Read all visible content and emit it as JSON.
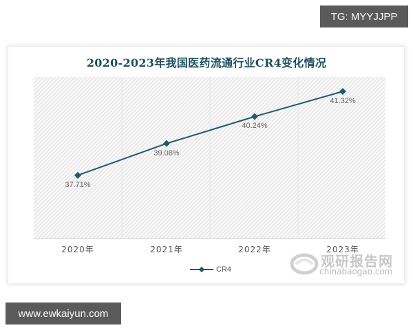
{
  "overlay": {
    "tg_badge": "TG: MYYJJPP",
    "site_badge": "www.ewkaiyun.com"
  },
  "watermark": {
    "brand_cn": "观研报告网",
    "brand_en": "chinabaogao.com"
  },
  "colors": {
    "line": "#1f5a6e",
    "marker": "#1f5a6e",
    "title": "#1f4e5e",
    "plot_hatch": "#d9d9d9"
  },
  "chart_data": {
    "type": "line",
    "title": "2020-2023年我国医药流通行业CR4变化情况",
    "categories": [
      "2020年",
      "2021年",
      "2022年",
      "2023年"
    ],
    "series": [
      {
        "name": "CR4",
        "values": [
          37.71,
          39.08,
          40.24,
          41.32
        ],
        "unit": "%"
      }
    ],
    "data_labels": [
      "37.71%",
      "39.08%",
      "40.24%",
      "41.32%"
    ],
    "xlabel": "",
    "ylabel": "",
    "y_axis_visible": false,
    "grid": "vertical",
    "legend_position": "bottom",
    "legend": [
      "CR4"
    ]
  }
}
